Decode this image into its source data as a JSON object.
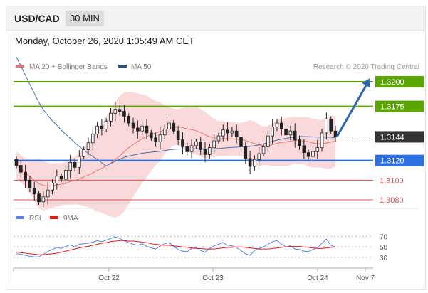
{
  "header": {
    "pair": "USD/CAD",
    "timeframe": "30 MIN",
    "datetime": "Monday, October 26, 2020 1:05:49 AM CET"
  },
  "legend": {
    "ma20_label": "MA 20 + Bollinger Bands",
    "ma50_label": "MA 50",
    "copyright": "Research © 2020 Trading Central",
    "rsi_label": "RSI",
    "ma9_label": "9MA"
  },
  "colors": {
    "green": "#5aa500",
    "blue": "#2d6fe0",
    "red": "#e05050",
    "ma20": "#e87878",
    "bands": "#f9d9d9",
    "ma50": "#4e6fa8",
    "bull": "#ffffff",
    "bear": "#222222",
    "arrow": "#2f65b0",
    "current": "#333333",
    "rsi": "#5b7fe0",
    "rsi_ma": "#d62020"
  },
  "chart_data": {
    "type": "candlestick",
    "instrument": "USD/CAD",
    "timeframe": "30 MIN",
    "ylim": [
      1.306,
      1.3225
    ],
    "x_ticks": [
      "Oct 22",
      "Oct 23",
      "Oct 24",
      "Nov 7"
    ],
    "levels": [
      {
        "value": 1.32,
        "label": "1.3200",
        "kind": "resistance",
        "color": "green"
      },
      {
        "value": 1.3175,
        "label": "1.3175",
        "kind": "resistance",
        "color": "green"
      },
      {
        "value": 1.3144,
        "label": "1.3144",
        "kind": "current",
        "color": "current"
      },
      {
        "value": 1.312,
        "label": "1.3120",
        "kind": "pivot",
        "color": "blue"
      },
      {
        "value": 1.31,
        "label": "1.3100",
        "kind": "support",
        "color": "red"
      },
      {
        "value": 1.308,
        "label": "1.3080",
        "kind": "support",
        "color": "red"
      }
    ],
    "closes": [
      1.3115,
      1.3108,
      1.31,
      1.3092,
      1.3086,
      1.3078,
      1.3083,
      1.309,
      1.3097,
      1.3104,
      1.3101,
      1.311,
      1.3118,
      1.3113,
      1.3124,
      1.3131,
      1.3138,
      1.3147,
      1.3155,
      1.3152,
      1.316,
      1.3168,
      1.3172,
      1.317,
      1.3165,
      1.3158,
      1.3153,
      1.315,
      1.3155,
      1.3148,
      1.3143,
      1.3139,
      1.3146,
      1.3152,
      1.3158,
      1.315,
      1.3141,
      1.3134,
      1.3129,
      1.3135,
      1.3139,
      1.3131,
      1.3126,
      1.3133,
      1.314,
      1.3145,
      1.3151,
      1.3148,
      1.315,
      1.3144,
      1.3134,
      1.3122,
      1.3114,
      1.3121,
      1.3127,
      1.3134,
      1.3145,
      1.3154,
      1.3158,
      1.3152,
      1.3146,
      1.315,
      1.3141,
      1.3135,
      1.3128,
      1.3124,
      1.3129,
      1.3133,
      1.3148,
      1.3162,
      1.315,
      1.3144
    ],
    "projection": {
      "from": 1.3144,
      "to": 1.32
    },
    "indicators": [
      "MA 20 + Bollinger Bands",
      "MA 50"
    ],
    "rsi": {
      "levels": [
        70,
        50,
        30
      ],
      "values": [
        37,
        36,
        34,
        32,
        31,
        31,
        36,
        41,
        45,
        49,
        47,
        51,
        54,
        50,
        55,
        56,
        57,
        59,
        62,
        60,
        63,
        66,
        69,
        66,
        62,
        58,
        55,
        53,
        56,
        51,
        48,
        46,
        52,
        56,
        58,
        51,
        45,
        42,
        41,
        47,
        49,
        43,
        40,
        47,
        52,
        55,
        58,
        53,
        52,
        49,
        43,
        37,
        34,
        43,
        47,
        50,
        55,
        60,
        62,
        55,
        50,
        52,
        46,
        45,
        42,
        41,
        45,
        48,
        57,
        65,
        53,
        50
      ],
      "ma9_values": [
        40,
        39,
        38,
        37,
        36,
        35,
        35,
        36,
        37,
        38,
        40,
        42,
        44,
        46,
        48,
        50,
        51,
        53,
        55,
        57,
        58,
        60,
        61,
        62,
        62,
        61,
        61,
        60,
        59,
        58,
        56,
        55,
        54,
        53,
        53,
        52,
        51,
        50,
        49,
        48,
        47,
        47,
        46,
        46,
        46,
        47,
        48,
        49,
        49,
        50,
        50,
        49,
        48,
        47,
        46,
        46,
        46,
        47,
        48,
        49,
        50,
        51,
        51,
        51,
        50,
        49,
        48,
        47,
        47,
        48,
        49,
        50
      ]
    }
  }
}
